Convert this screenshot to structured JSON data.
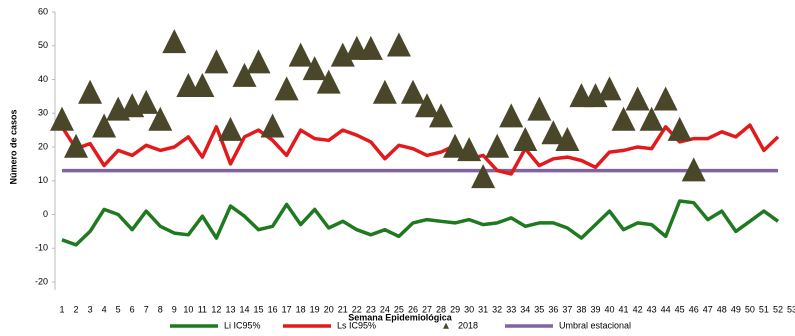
{
  "chart_data": {
    "type": "line",
    "y_label": "Número de casos",
    "x_label": "Semana Epidemiológica",
    "categories": [
      "1",
      "2",
      "3",
      "4",
      "5",
      "6",
      "7",
      "8",
      "9",
      "10",
      "11",
      "12",
      "13",
      "14",
      "15",
      "16",
      "17",
      "18",
      "19",
      "20",
      "21",
      "22",
      "23",
      "24",
      "25",
      "26",
      "27",
      "28",
      "29",
      "30",
      "31",
      "32",
      "33",
      "34",
      "35",
      "36",
      "37",
      "38",
      "39",
      "40",
      "41",
      "42",
      "43",
      "44",
      "45",
      "46",
      "47",
      "48",
      "49",
      "50",
      "51",
      "52",
      "53"
    ],
    "ylim": [
      -20,
      60
    ],
    "yticks": [
      -20,
      -10,
      0,
      10,
      20,
      30,
      40,
      50,
      60
    ],
    "series": [
      {
        "name": "Li IC95%",
        "color": "#1f7a1f",
        "type": "line",
        "values": [
          -7.5,
          -9,
          -5,
          1.5,
          0,
          -4.5,
          1,
          -3.5,
          -5.5,
          -6,
          -0.5,
          -7,
          2.5,
          -0.5,
          -4.5,
          -3.5,
          3,
          -3,
          1.5,
          -4,
          -2,
          -4.5,
          -6,
          -4.5,
          -6.5,
          -2.5,
          -1.5,
          -2,
          -2.5,
          -1.5,
          -3,
          -2.5,
          -1,
          -3.5,
          -2.5,
          -2.5,
          -4,
          -7,
          -3,
          1,
          -4.5,
          -2.5,
          -3,
          -6.5,
          4,
          3.5,
          -1.5,
          1,
          -5,
          -2,
          1,
          -2,
          null
        ]
      },
      {
        "name": "Ls IC95%",
        "color": "#e31a1c",
        "type": "line",
        "values": [
          26,
          19.5,
          21,
          14.5,
          19,
          17.5,
          20.5,
          19,
          20,
          23,
          17,
          26,
          15,
          23,
          25,
          22,
          17.5,
          25,
          22.5,
          22,
          25,
          23.5,
          21.5,
          16.5,
          20.5,
          19.5,
          17.5,
          18.5,
          20.5,
          16.5,
          17.5,
          13,
          12,
          19.5,
          14.5,
          16.5,
          17,
          16,
          14,
          18.5,
          19,
          20,
          19.5,
          26,
          21.5,
          22.5,
          22.5,
          24.5,
          23,
          26.5,
          19,
          23,
          null
        ]
      },
      {
        "name": "2018",
        "color": "#4a4629",
        "type": "scatter",
        "values": [
          28,
          20,
          36,
          26,
          31,
          32,
          33,
          28,
          51,
          38,
          38,
          45,
          25,
          41,
          45,
          26,
          37,
          47,
          43,
          39,
          47,
          49,
          49,
          36,
          50,
          36,
          32,
          29,
          20,
          19,
          11,
          20,
          29,
          22,
          31,
          24,
          22,
          35,
          35,
          37,
          28,
          34,
          28,
          34,
          25,
          13,
          null,
          null,
          null,
          null,
          null,
          null,
          null
        ]
      },
      {
        "name": "Umbral estacional",
        "color": "#8064a2",
        "type": "line",
        "values": [
          13,
          13,
          13,
          13,
          13,
          13,
          13,
          13,
          13,
          13,
          13,
          13,
          13,
          13,
          13,
          13,
          13,
          13,
          13,
          13,
          13,
          13,
          13,
          13,
          13,
          13,
          13,
          13,
          13,
          13,
          13,
          13,
          13,
          13,
          13,
          13,
          13,
          13,
          13,
          13,
          13,
          13,
          13,
          13,
          13,
          13,
          13,
          13,
          13,
          13,
          13,
          13,
          null
        ]
      }
    ]
  }
}
